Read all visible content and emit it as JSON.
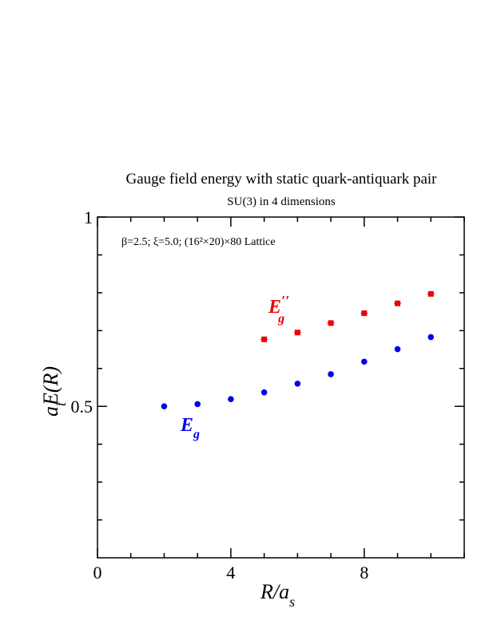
{
  "chart_data": {
    "type": "scatter",
    "title": "Gauge field energy with static quark-antiquark pair",
    "subtitle": "SU(3) in 4 dimensions",
    "annotation": "β=2.5;  ξ=5.0;  (16²×20)×80 Lattice",
    "xlabel": {
      "main": "R/a",
      "sub": "s"
    },
    "ylabel": {
      "pre": "a",
      "sub": "t",
      "post": "E(R)"
    },
    "xlim": [
      0,
      11
    ],
    "ylim": [
      0.1,
      1.0
    ],
    "x_ticks": [
      0,
      4,
      8
    ],
    "y_ticks": [
      0.5,
      1
    ],
    "y_tick_labels": [
      "0.5",
      "1"
    ],
    "grid": false,
    "series": [
      {
        "name": "E_g",
        "label": {
          "main": "E",
          "sub": "g"
        },
        "marker": "circle",
        "color": "#0000ee",
        "x": [
          2,
          3,
          4,
          5,
          6,
          7,
          8,
          9,
          10
        ],
        "y": [
          0.5,
          0.506,
          0.519,
          0.537,
          0.56,
          0.585,
          0.618,
          0.651,
          0.683
        ]
      },
      {
        "name": "E_g''",
        "label": {
          "main": "E",
          "sub": "g",
          "sup": "′′"
        },
        "marker": "square",
        "color": "#ee0000",
        "x": [
          5,
          6,
          7,
          8,
          9,
          10
        ],
        "y": [
          0.677,
          0.695,
          0.72,
          0.746,
          0.772,
          0.797
        ]
      }
    ]
  }
}
